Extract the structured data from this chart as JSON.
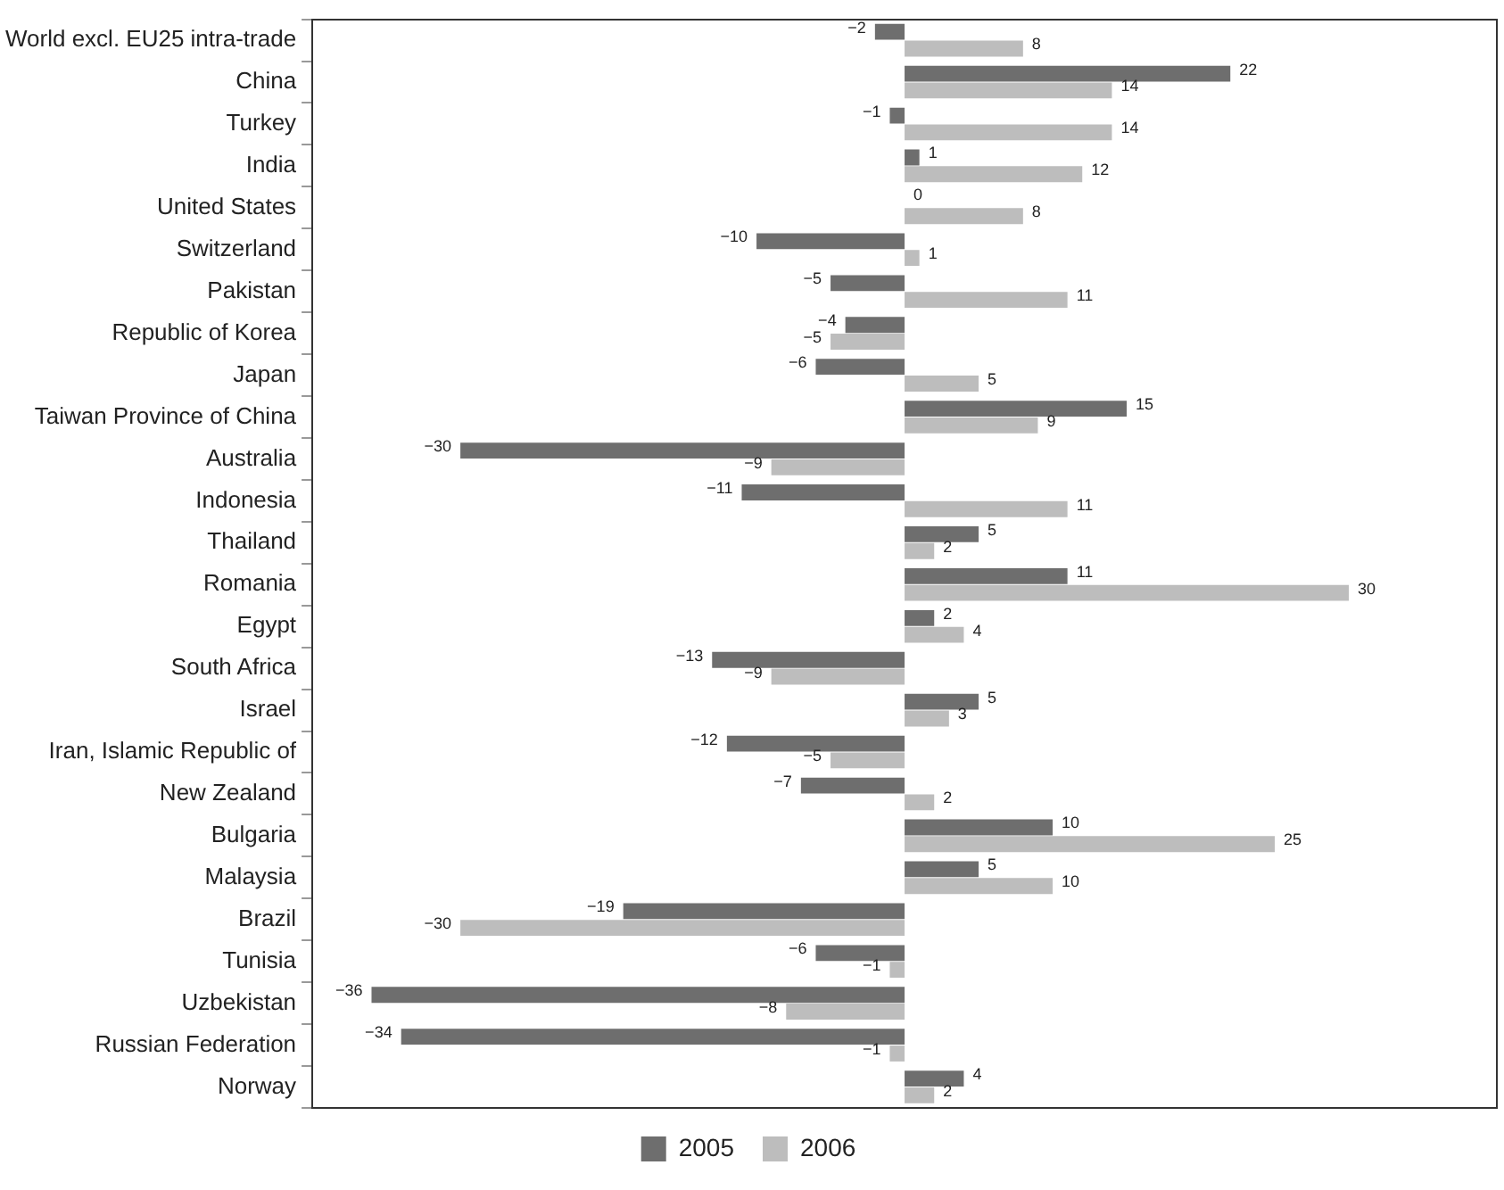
{
  "chart_data": {
    "type": "bar",
    "orientation": "horizontal",
    "data_labels": true,
    "grid": false,
    "legend": "bottom",
    "tick_labels": "y",
    "categories": [
      "World excl. EU25 intra-trade",
      "China",
      "Turkey",
      "India",
      "United States",
      "Switzerland",
      "Pakistan",
      "Republic of Korea",
      "Japan",
      "Taiwan Province of China",
      "Australia",
      "Indonesia",
      "Thailand",
      "Romania",
      "Egypt",
      "South Africa",
      "Israel",
      "Iran, Islamic Republic of",
      "New Zealand",
      "Bulgaria",
      "Malaysia",
      "Brazil",
      "Tunisia",
      "Uzbekistan",
      "Russian Federation",
      "Norway"
    ],
    "series": [
      {
        "name": "2005",
        "color": "#6e6e6e",
        "values": [
          -2,
          22,
          -1,
          1,
          0,
          -10,
          -5,
          -4,
          -6,
          15,
          -30,
          -11,
          5,
          11,
          2,
          -13,
          5,
          -12,
          -7,
          10,
          5,
          -19,
          -6,
          -36,
          -34,
          4
        ]
      },
      {
        "name": "2006",
        "color": "#bdbdbd",
        "values": [
          8,
          14,
          14,
          12,
          8,
          1,
          11,
          -5,
          5,
          9,
          -9,
          11,
          2,
          30,
          4,
          -9,
          3,
          -5,
          2,
          25,
          10,
          -30,
          -1,
          -8,
          -1,
          2
        ]
      }
    ]
  }
}
